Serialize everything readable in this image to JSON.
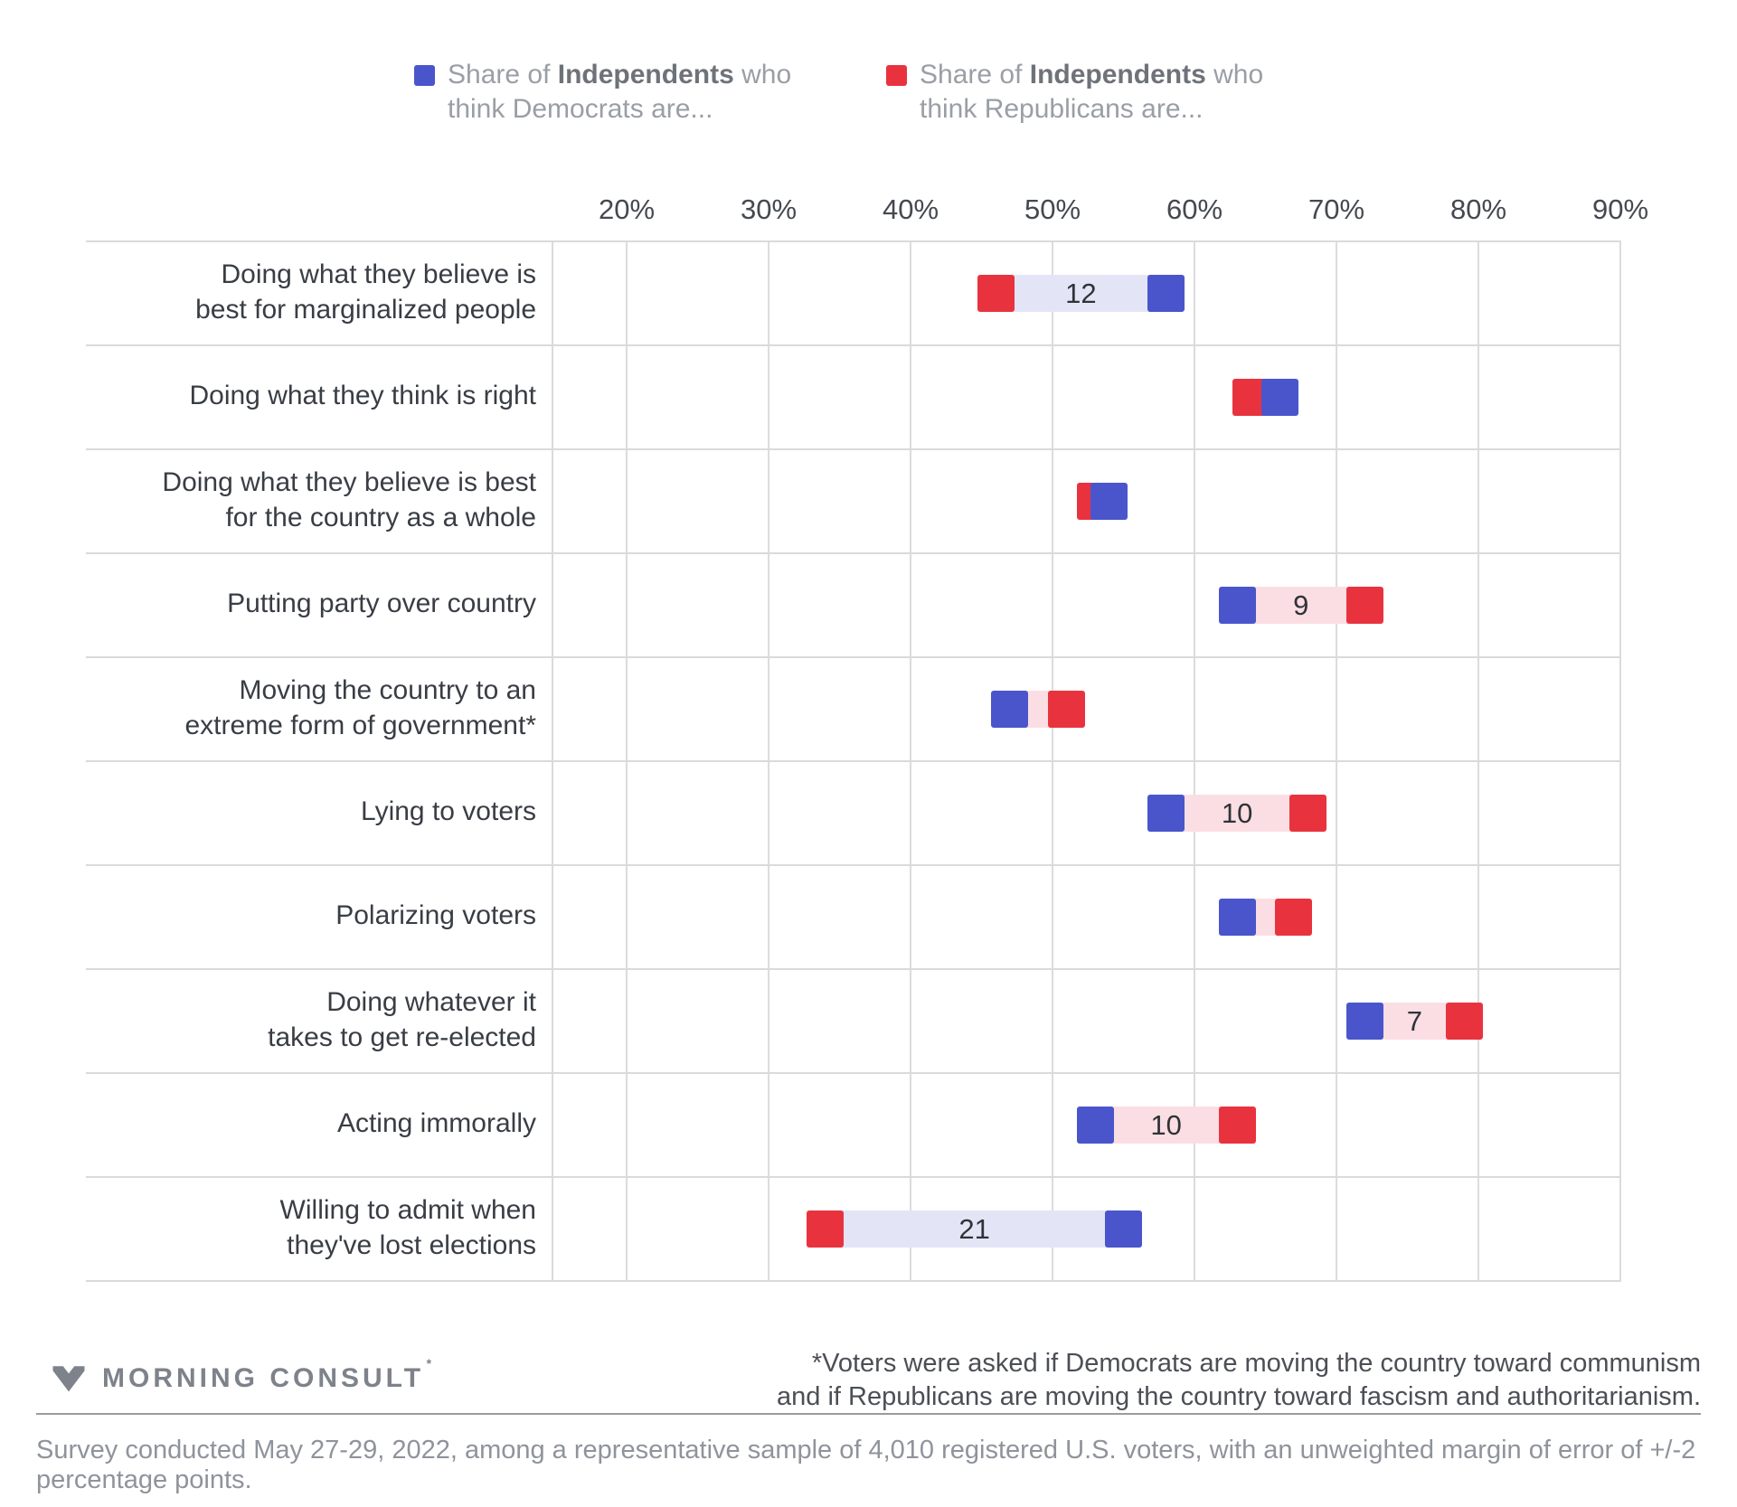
{
  "legend": {
    "democrats": {
      "prefix": "Share of ",
      "bold": "Independents",
      "suffix": " who",
      "line2": "think Democrats are..."
    },
    "republicans": {
      "prefix": "Share of ",
      "bold": "Independents",
      "suffix": " who",
      "line2": "think Republicans are..."
    }
  },
  "colors": {
    "dem_blue": "#4a55cc",
    "rep_red": "#e8333f",
    "band_blue": "#e3e5f6",
    "band_pink": "#fbdee3",
    "gridline": "#dcdcdc",
    "row_line": "#dadada"
  },
  "chart_data": {
    "type": "dumbbell",
    "unit": "%",
    "x_axis": {
      "min": 20,
      "max": 90,
      "tick_values": [
        20,
        30,
        40,
        50,
        60,
        70,
        80,
        90
      ],
      "tick_labels": [
        "20%",
        "30%",
        "40%",
        "50%",
        "60%",
        "70%",
        "80%",
        "90%"
      ]
    },
    "series": [
      {
        "name": "Independents who think Democrats are...",
        "color": "#4a55cc"
      },
      {
        "name": "Independents who think Republicans are...",
        "color": "#e8333f"
      }
    ],
    "rows": [
      {
        "label_lines": [
          "Doing what they believe is",
          "best for marginalized people"
        ],
        "democrats": 58,
        "republicans": 46,
        "gap_label": "12"
      },
      {
        "label_lines": [
          "Doing what they think is right"
        ],
        "democrats": 66,
        "republicans": 64,
        "gap_label": null
      },
      {
        "label_lines": [
          "Doing what they believe is best",
          "for the country as a whole"
        ],
        "democrats": 54,
        "republicans": 53,
        "gap_label": null
      },
      {
        "label_lines": [
          "Putting party over country"
        ],
        "democrats": 63,
        "republicans": 72,
        "gap_label": "9"
      },
      {
        "label_lines": [
          "Moving the country to an",
          "extreme form of government*"
        ],
        "democrats": 47,
        "republicans": 51,
        "gap_label": null
      },
      {
        "label_lines": [
          "Lying to voters"
        ],
        "democrats": 58,
        "republicans": 68,
        "gap_label": "10"
      },
      {
        "label_lines": [
          "Polarizing voters"
        ],
        "democrats": 63,
        "republicans": 67,
        "gap_label": null
      },
      {
        "label_lines": [
          "Doing whatever it",
          "takes to get re-elected"
        ],
        "democrats": 72,
        "republicans": 79,
        "gap_label": "7"
      },
      {
        "label_lines": [
          "Acting immorally"
        ],
        "democrats": 53,
        "republicans": 63,
        "gap_label": "10"
      },
      {
        "label_lines": [
          "Willing to admit when",
          "they've lost elections"
        ],
        "democrats": 55,
        "republicans": 34,
        "gap_label": "21"
      }
    ]
  },
  "footnote": {
    "line1": "*Voters were asked if Democrats are moving the country toward communism",
    "line2": "and if Republicans are moving the country toward fascism and authoritarianism."
  },
  "footer": {
    "logo_text": "MORNING CONSULT",
    "survey_note": "Survey conducted May 27-29, 2022, among a representative sample of 4,010 registered U.S. voters, with an unweighted margin of error of +/-2 percentage points."
  }
}
